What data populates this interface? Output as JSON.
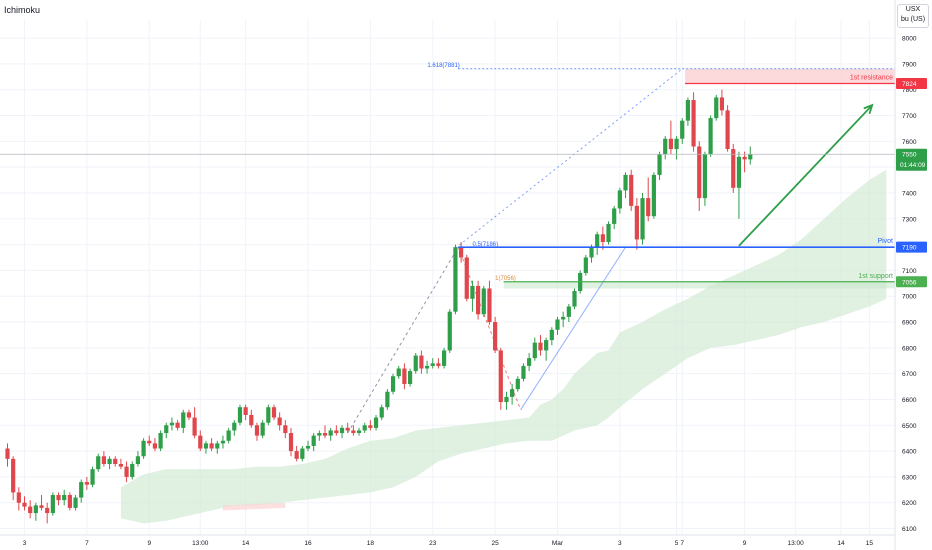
{
  "indicator": "Ichimoku",
  "currency": {
    "code": "USX",
    "unit": "bu (US)"
  },
  "colors": {
    "up": "#2e9e49",
    "down": "#e0474c",
    "cloud": "#cfead3",
    "cloud_bear": "#fbd3d3",
    "pivot": "#2962ff",
    "support": "#4caf50",
    "resistance": "#f23645",
    "resistance_zone": "#fbd1d3",
    "arrow": "#2e9e49",
    "fib": "#2962ff",
    "grid": "#f0f3fa",
    "current_price": "#2e9e49"
  },
  "chart_data": {
    "type": "candlestick",
    "ylim": [
      6075,
      8070
    ],
    "y_ticks": [
      8000,
      7900,
      7800,
      7700,
      7600,
      7500,
      7400,
      7300,
      7200,
      7100,
      7000,
      6900,
      6800,
      6700,
      6600,
      6500,
      6400,
      6300,
      6200,
      6100
    ],
    "y_tick_labels": [
      "8000",
      "7900",
      "7800",
      "7700",
      "7600",
      "7500",
      "7400",
      "7300",
      "7200",
      "7100",
      "7000",
      "6900",
      "6800",
      "6700",
      "6600",
      "6500",
      "6400",
      "6300",
      "6200",
      "6100"
    ],
    "x_ticks": [
      {
        "label": "3",
        "bar": 3
      },
      {
        "label": "7",
        "bar": 14
      },
      {
        "label": "9",
        "bar": 25
      },
      {
        "label": "13:00",
        "bar": 34
      },
      {
        "label": "14",
        "bar": 42
      },
      {
        "label": "16",
        "bar": 53
      },
      {
        "label": "18",
        "bar": 64
      },
      {
        "label": "23",
        "bar": 75
      },
      {
        "label": "25",
        "bar": 86
      },
      {
        "label": "Mar",
        "bar": 97
      },
      {
        "label": "3",
        "bar": 108
      },
      {
        "label": "5",
        "bar": 118
      },
      {
        "label": "7",
        "bar": 119
      },
      {
        "label": "9",
        "bar": 130
      },
      {
        "label": "13:00",
        "bar": 139
      },
      {
        "label": "14",
        "bar": 147
      },
      {
        "label": "15",
        "bar": 152
      }
    ],
    "candles": [
      [
        6410,
        6430,
        6340,
        6370
      ],
      [
        6370,
        6380,
        6210,
        6240
      ],
      [
        6240,
        6260,
        6170,
        6200
      ],
      [
        6200,
        6225,
        6170,
        6185
      ],
      [
        6185,
        6210,
        6140,
        6160
      ],
      [
        6160,
        6200,
        6130,
        6190
      ],
      [
        6190,
        6230,
        6170,
        6180
      ],
      [
        6180,
        6200,
        6120,
        6160
      ],
      [
        6160,
        6240,
        6150,
        6230
      ],
      [
        6230,
        6240,
        6190,
        6210
      ],
      [
        6210,
        6250,
        6190,
        6230
      ],
      [
        6230,
        6240,
        6170,
        6180
      ],
      [
        6180,
        6230,
        6170,
        6220
      ],
      [
        6220,
        6290,
        6200,
        6280
      ],
      [
        6280,
        6300,
        6250,
        6270
      ],
      [
        6270,
        6340,
        6260,
        6330
      ],
      [
        6330,
        6390,
        6320,
        6380
      ],
      [
        6380,
        6400,
        6340,
        6350
      ],
      [
        6350,
        6380,
        6330,
        6370
      ],
      [
        6370,
        6380,
        6340,
        6350
      ],
      [
        6350,
        6370,
        6330,
        6340
      ],
      [
        6340,
        6360,
        6280,
        6300
      ],
      [
        6300,
        6360,
        6290,
        6350
      ],
      [
        6350,
        6400,
        6340,
        6380
      ],
      [
        6380,
        6450,
        6370,
        6440
      ],
      [
        6440,
        6460,
        6420,
        6430
      ],
      [
        6430,
        6450,
        6400,
        6410
      ],
      [
        6410,
        6480,
        6400,
        6470
      ],
      [
        6470,
        6510,
        6450,
        6500
      ],
      [
        6500,
        6530,
        6480,
        6510
      ],
      [
        6510,
        6520,
        6480,
        6490
      ],
      [
        6490,
        6560,
        6470,
        6550
      ],
      [
        6550,
        6560,
        6520,
        6530
      ],
      [
        6530,
        6570,
        6450,
        6460
      ],
      [
        6460,
        6480,
        6400,
        6410
      ],
      [
        6410,
        6440,
        6390,
        6430
      ],
      [
        6430,
        6450,
        6400,
        6410
      ],
      [
        6410,
        6440,
        6390,
        6430
      ],
      [
        6430,
        6460,
        6410,
        6440
      ],
      [
        6440,
        6490,
        6430,
        6480
      ],
      [
        6480,
        6520,
        6460,
        6510
      ],
      [
        6510,
        6580,
        6500,
        6570
      ],
      [
        6570,
        6580,
        6520,
        6540
      ],
      [
        6540,
        6560,
        6490,
        6500
      ],
      [
        6500,
        6510,
        6440,
        6460
      ],
      [
        6460,
        6520,
        6450,
        6510
      ],
      [
        6510,
        6580,
        6500,
        6570
      ],
      [
        6570,
        6580,
        6520,
        6530
      ],
      [
        6530,
        6550,
        6480,
        6500
      ],
      [
        6500,
        6520,
        6450,
        6470
      ],
      [
        6470,
        6490,
        6380,
        6400
      ],
      [
        6400,
        6420,
        6360,
        6370
      ],
      [
        6370,
        6420,
        6360,
        6410
      ],
      [
        6410,
        6440,
        6400,
        6420
      ],
      [
        6420,
        6470,
        6400,
        6460
      ],
      [
        6460,
        6480,
        6440,
        6470
      ],
      [
        6470,
        6500,
        6450,
        6460
      ],
      [
        6460,
        6490,
        6440,
        6480
      ],
      [
        6480,
        6500,
        6460,
        6470
      ],
      [
        6470,
        6500,
        6450,
        6490
      ],
      [
        6490,
        6510,
        6470,
        6480
      ],
      [
        6480,
        6500,
        6460,
        6470
      ],
      [
        6470,
        6490,
        6460,
        6480
      ],
      [
        6480,
        6510,
        6470,
        6500
      ],
      [
        6500,
        6520,
        6480,
        6490
      ],
      [
        6490,
        6540,
        6480,
        6530
      ],
      [
        6530,
        6580,
        6520,
        6570
      ],
      [
        6570,
        6640,
        6560,
        6630
      ],
      [
        6630,
        6700,
        6620,
        6690
      ],
      [
        6690,
        6730,
        6680,
        6720
      ],
      [
        6720,
        6740,
        6640,
        6660
      ],
      [
        6660,
        6720,
        6650,
        6710
      ],
      [
        6710,
        6780,
        6700,
        6770
      ],
      [
        6770,
        6790,
        6700,
        6720
      ],
      [
        6720,
        6750,
        6700,
        6730
      ],
      [
        6730,
        6760,
        6720,
        6740
      ],
      [
        6740,
        6760,
        6720,
        6730
      ],
      [
        6730,
        6800,
        6720,
        6790
      ],
      [
        6790,
        6950,
        6780,
        6940
      ],
      [
        6940,
        7200,
        6930,
        7190
      ],
      [
        7190,
        7210,
        7130,
        7150
      ],
      [
        7150,
        7160,
        6980,
        6990
      ],
      [
        6990,
        7060,
        6940,
        7040
      ],
      [
        7040,
        7060,
        6910,
        6930
      ],
      [
        6930,
        7040,
        6920,
        7030
      ],
      [
        7030,
        7060,
        6890,
        6900
      ],
      [
        6900,
        6920,
        6780,
        6790
      ],
      [
        6790,
        6800,
        6560,
        6590
      ],
      [
        6590,
        6630,
        6560,
        6610
      ],
      [
        6610,
        6660,
        6580,
        6640
      ],
      [
        6640,
        6690,
        6630,
        6680
      ],
      [
        6680,
        6740,
        6670,
        6730
      ],
      [
        6730,
        6780,
        6710,
        6760
      ],
      [
        6760,
        6840,
        6750,
        6820
      ],
      [
        6820,
        6850,
        6770,
        6790
      ],
      [
        6790,
        6840,
        6750,
        6830
      ],
      [
        6830,
        6880,
        6810,
        6870
      ],
      [
        6870,
        6920,
        6850,
        6910
      ],
      [
        6910,
        6940,
        6880,
        6920
      ],
      [
        6920,
        6970,
        6900,
        6960
      ],
      [
        6960,
        7030,
        6950,
        7020
      ],
      [
        7020,
        7100,
        7010,
        7090
      ],
      [
        7090,
        7160,
        7080,
        7150
      ],
      [
        7150,
        7200,
        7130,
        7190
      ],
      [
        7190,
        7250,
        7160,
        7240
      ],
      [
        7240,
        7270,
        7180,
        7210
      ],
      [
        7210,
        7290,
        7200,
        7280
      ],
      [
        7280,
        7350,
        7260,
        7340
      ],
      [
        7340,
        7420,
        7320,
        7410
      ],
      [
        7410,
        7480,
        7380,
        7470
      ],
      [
        7470,
        7490,
        7330,
        7350
      ],
      [
        7350,
        7380,
        7180,
        7220
      ],
      [
        7220,
        7400,
        7200,
        7380
      ],
      [
        7380,
        7460,
        7290,
        7310
      ],
      [
        7310,
        7480,
        7300,
        7470
      ],
      [
        7470,
        7560,
        7450,
        7550
      ],
      [
        7550,
        7620,
        7530,
        7610
      ],
      [
        7610,
        7680,
        7550,
        7570
      ],
      [
        7570,
        7620,
        7530,
        7610
      ],
      [
        7610,
        7690,
        7590,
        7680
      ],
      [
        7680,
        7770,
        7660,
        7760
      ],
      [
        7760,
        7790,
        7560,
        7580
      ],
      [
        7580,
        7600,
        7330,
        7380
      ],
      [
        7380,
        7560,
        7350,
        7550
      ],
      [
        7550,
        7700,
        7540,
        7690
      ],
      [
        7690,
        7780,
        7680,
        7770
      ],
      [
        7770,
        7800,
        7700,
        7720
      ],
      [
        7720,
        7740,
        7560,
        7570
      ],
      [
        7570,
        7590,
        7400,
        7420
      ],
      [
        7420,
        7560,
        7300,
        7540
      ],
      [
        7540,
        7560,
        7480,
        7530
      ],
      [
        7530,
        7580,
        7510,
        7550
      ]
    ],
    "cloud_upper": [
      [
        20,
        6260
      ],
      [
        24,
        6310
      ],
      [
        28,
        6330
      ],
      [
        32,
        6330
      ],
      [
        36,
        6330
      ],
      [
        40,
        6330
      ],
      [
        44,
        6340
      ],
      [
        48,
        6340
      ],
      [
        52,
        6350
      ],
      [
        56,
        6370
      ],
      [
        60,
        6410
      ],
      [
        64,
        6440
      ],
      [
        68,
        6450
      ],
      [
        72,
        6480
      ],
      [
        76,
        6490
      ],
      [
        80,
        6500
      ],
      [
        84,
        6510
      ],
      [
        88,
        6520
      ],
      [
        92,
        6530
      ],
      [
        94,
        6580
      ],
      [
        96,
        6600
      ],
      [
        98,
        6640
      ],
      [
        100,
        6700
      ],
      [
        104,
        6780
      ],
      [
        106,
        6790
      ],
      [
        108,
        6860
      ],
      [
        112,
        6900
      ],
      [
        116,
        6950
      ],
      [
        120,
        6990
      ],
      [
        124,
        7040
      ],
      [
        128,
        7080
      ],
      [
        132,
        7120
      ],
      [
        136,
        7160
      ],
      [
        140,
        7220
      ],
      [
        144,
        7300
      ],
      [
        148,
        7380
      ],
      [
        152,
        7450
      ],
      [
        155,
        7490
      ]
    ],
    "cloud_lower": [
      [
        20,
        6140
      ],
      [
        24,
        6120
      ],
      [
        28,
        6130
      ],
      [
        32,
        6150
      ],
      [
        36,
        6170
      ],
      [
        40,
        6190
      ],
      [
        44,
        6190
      ],
      [
        48,
        6200
      ],
      [
        52,
        6210
      ],
      [
        56,
        6220
      ],
      [
        60,
        6230
      ],
      [
        64,
        6240
      ],
      [
        68,
        6260
      ],
      [
        72,
        6300
      ],
      [
        76,
        6360
      ],
      [
        80,
        6390
      ],
      [
        84,
        6410
      ],
      [
        88,
        6430
      ],
      [
        92,
        6440
      ],
      [
        94,
        6440
      ],
      [
        96,
        6440
      ],
      [
        98,
        6460
      ],
      [
        100,
        6480
      ],
      [
        104,
        6500
      ],
      [
        106,
        6530
      ],
      [
        108,
        6570
      ],
      [
        112,
        6640
      ],
      [
        116,
        6700
      ],
      [
        120,
        6760
      ],
      [
        124,
        6800
      ],
      [
        128,
        6810
      ],
      [
        132,
        6830
      ],
      [
        136,
        6850
      ],
      [
        140,
        6880
      ],
      [
        144,
        6900
      ],
      [
        148,
        6930
      ],
      [
        152,
        6960
      ],
      [
        155,
        6990
      ]
    ],
    "levels": [
      {
        "name": "1st resistance",
        "value": 7824,
        "label": "7824",
        "zone_top": 7880
      },
      {
        "name": "Pivot",
        "value": 7190,
        "label": "7190"
      },
      {
        "name": "1st support",
        "value": 7056,
        "label": "7056",
        "zone_bottom": 7030
      }
    ],
    "fib_labels": [
      {
        "text": "1.618(7881)",
        "value": 7881
      },
      {
        "text": "0.5(7186)",
        "value": 7186
      },
      {
        "text": "1(7056)",
        "value": 7056
      }
    ],
    "current_price": {
      "value": 7550,
      "label": "7550",
      "countdown": "01:44:09"
    }
  }
}
